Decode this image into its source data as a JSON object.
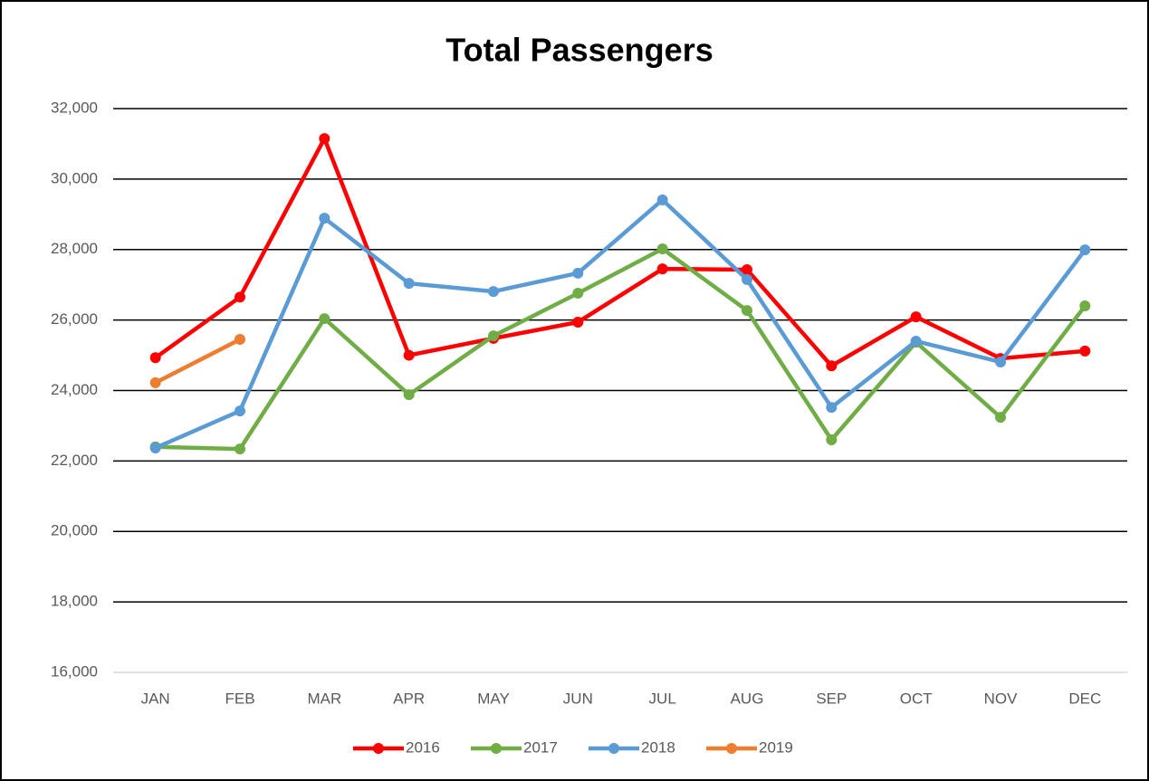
{
  "chart_data": {
    "type": "line",
    "title": "Total Passengers",
    "categories": [
      "JAN",
      "FEB",
      "MAR",
      "APR",
      "MAY",
      "JUN",
      "JUL",
      "AUG",
      "SEP",
      "OCT",
      "NOV",
      "DEC"
    ],
    "series": [
      {
        "name": "2016",
        "color": "#ff0000",
        "values": [
          24930,
          26650,
          31150,
          25000,
          25480,
          25940,
          27450,
          27430,
          24700,
          26090,
          24910,
          25120
        ]
      },
      {
        "name": "2017",
        "color": "#70ad47",
        "values": [
          22400,
          22340,
          26040,
          23880,
          25550,
          26760,
          28020,
          26270,
          22600,
          25370,
          23240,
          26400
        ]
      },
      {
        "name": "2018",
        "color": "#5b9bd5",
        "values": [
          22370,
          23420,
          28890,
          27040,
          26810,
          27330,
          29410,
          27150,
          23520,
          25400,
          24810,
          27990
        ]
      },
      {
        "name": "2019",
        "color": "#ed7d31",
        "values": [
          24220,
          25450,
          null,
          null,
          null,
          null,
          null,
          null,
          null,
          null,
          null,
          null
        ]
      }
    ],
    "ylim": [
      16000,
      32000
    ],
    "yticks": [
      {
        "value": 16000,
        "label": "16,000"
      },
      {
        "value": 18000,
        "label": "18,000"
      },
      {
        "value": 20000,
        "label": "20,000"
      },
      {
        "value": 22000,
        "label": "22,000"
      },
      {
        "value": 24000,
        "label": "24,000"
      },
      {
        "value": 26000,
        "label": "26,000"
      },
      {
        "value": 28000,
        "label": "28,000"
      },
      {
        "value": 30000,
        "label": "30,000"
      },
      {
        "value": 32000,
        "label": "32,000"
      }
    ],
    "grid": true,
    "legend": "bottom"
  }
}
